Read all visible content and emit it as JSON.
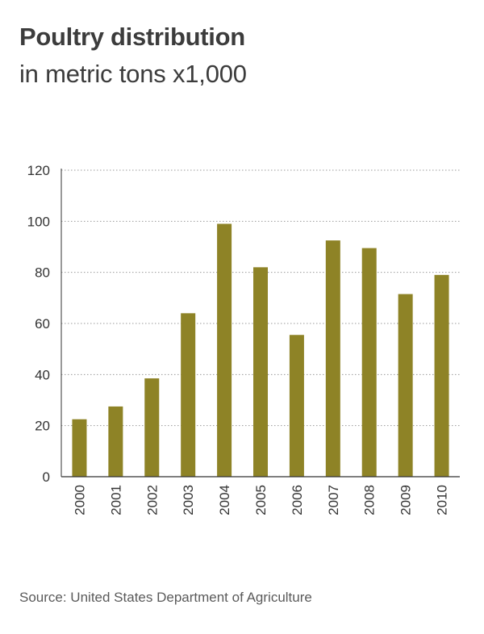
{
  "title": "Poultry distribution",
  "subtitle": "in metric tons x1,000",
  "source": "Source: United States Department of Agriculture",
  "colors": {
    "bar": "#8e8326",
    "grid": "#9a9a9a",
    "axis": "#333333",
    "text": "#333333"
  },
  "chart_data": {
    "type": "bar",
    "categories": [
      "2000",
      "2001",
      "2002",
      "2003",
      "2004",
      "2005",
      "2006",
      "2007",
      "2008",
      "2009",
      "2010"
    ],
    "values": [
      22.5,
      27.5,
      38.5,
      64,
      99,
      82,
      55.5,
      92.5,
      89.5,
      71.5,
      79
    ],
    "yticks": [
      0,
      20,
      40,
      60,
      80,
      100,
      120
    ],
    "ylim": [
      0,
      120
    ],
    "grid": true,
    "title": "Poultry distribution",
    "subtitle": "in metric tons x1,000"
  }
}
